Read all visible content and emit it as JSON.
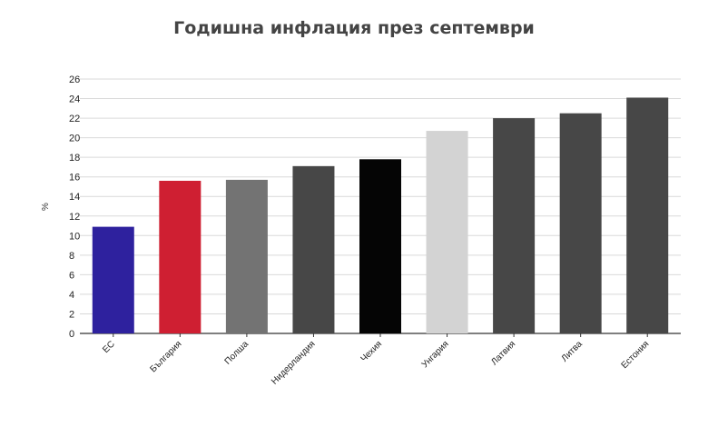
{
  "chart_data": {
    "type": "bar",
    "title": "Годишна инфлация през септември",
    "ylabel": "%",
    "xlabel": "",
    "categories": [
      "ЕС",
      "България",
      "Полша",
      "Нидерландия",
      "Чехия",
      "Унгария",
      "Латвия",
      "Литва",
      "Естония"
    ],
    "values": [
      10.9,
      15.6,
      15.7,
      17.1,
      17.8,
      20.7,
      22.0,
      22.5,
      24.1
    ],
    "colors": [
      "#2e219e",
      "#cf1f32",
      "#737373",
      "#474747",
      "#050505",
      "#d3d3d3",
      "#474747",
      "#474747",
      "#474747"
    ],
    "ylim": [
      0,
      26
    ],
    "yticks": [
      0,
      2,
      4,
      6,
      8,
      10,
      12,
      14,
      16,
      18,
      20,
      22,
      24,
      26
    ],
    "grid": true,
    "legend": "none"
  }
}
